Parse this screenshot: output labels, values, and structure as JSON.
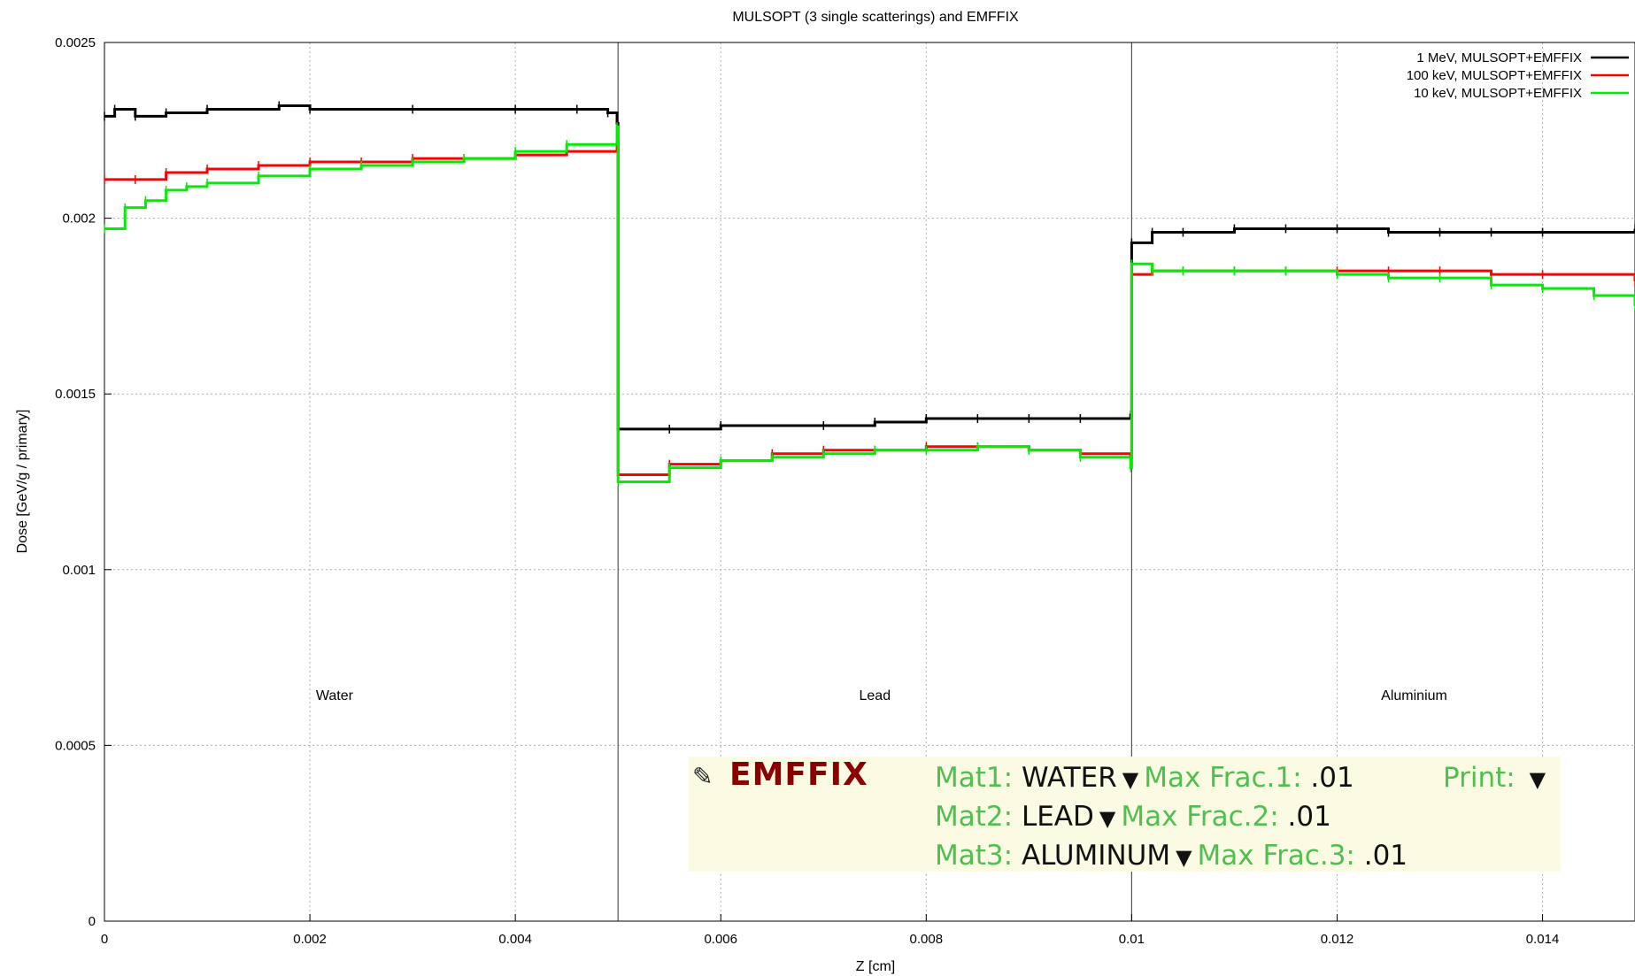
{
  "chart_data": {
    "type": "line",
    "title": "MULSOPT (3 single scatterings) and EMFFIX",
    "xlabel": "Z [cm]",
    "ylabel": "Dose [GeV/g / primary]",
    "xlim": [
      0,
      0.0149
    ],
    "ylim": [
      0,
      0.0025
    ],
    "x_ticks": [
      "0",
      "0.002",
      "0.004",
      "0.006",
      "0.008",
      "0.01",
      "0.012",
      "0.014"
    ],
    "y_ticks": [
      "0",
      "0.0005",
      "0.001",
      "0.0015",
      "0.002",
      "0.0025"
    ],
    "grid": true,
    "legend_position": "top-right",
    "regions": [
      {
        "label": "Water",
        "x_start": 0,
        "x_end": 0.005,
        "label_x": 0.00224
      },
      {
        "label": "Lead",
        "x_start": 0.005,
        "x_end": 0.01,
        "label_x": 0.0075
      },
      {
        "label": "Aluminium",
        "x_start": 0.01,
        "x_end": 0.0149,
        "label_x": 0.01275
      }
    ],
    "label_y": 0.00063,
    "series": [
      {
        "name": "1 MeV, MULSOPT+EMFFIX",
        "color": "#000000",
        "points": [
          [
            0,
            0.00229
          ],
          [
            0.0001,
            0.00231
          ],
          [
            0.0003,
            0.00229
          ],
          [
            0.0006,
            0.0023
          ],
          [
            0.001,
            0.00231
          ],
          [
            0.0017,
            0.00232
          ],
          [
            0.002,
            0.00231
          ],
          [
            0.003,
            0.00231
          ],
          [
            0.004,
            0.00231
          ],
          [
            0.0046,
            0.00231
          ],
          [
            0.0049,
            0.0023
          ],
          [
            0.00499,
            0.00227
          ],
          [
            0.005,
            0.0014
          ],
          [
            0.0055,
            0.0014
          ],
          [
            0.006,
            0.00141
          ],
          [
            0.007,
            0.00141
          ],
          [
            0.0075,
            0.00142
          ],
          [
            0.008,
            0.00143
          ],
          [
            0.0085,
            0.00143
          ],
          [
            0.009,
            0.00143
          ],
          [
            0.0095,
            0.00143
          ],
          [
            0.00999,
            0.00144
          ],
          [
            0.01,
            0.00193
          ],
          [
            0.0102,
            0.00196
          ],
          [
            0.0105,
            0.00196
          ],
          [
            0.011,
            0.00197
          ],
          [
            0.0115,
            0.00197
          ],
          [
            0.012,
            0.00197
          ],
          [
            0.0125,
            0.00196
          ],
          [
            0.013,
            0.00196
          ],
          [
            0.0135,
            0.00196
          ],
          [
            0.014,
            0.00196
          ],
          [
            0.0149,
            0.00197
          ]
        ]
      },
      {
        "name": "100 keV, MULSOPT+EMFFIX",
        "color": "#ff0000",
        "points": [
          [
            0,
            0.00211
          ],
          [
            0.0003,
            0.00211
          ],
          [
            0.0006,
            0.00213
          ],
          [
            0.001,
            0.00214
          ],
          [
            0.0015,
            0.00215
          ],
          [
            0.002,
            0.00216
          ],
          [
            0.0025,
            0.00216
          ],
          [
            0.003,
            0.00217
          ],
          [
            0.0035,
            0.00217
          ],
          [
            0.004,
            0.00218
          ],
          [
            0.0045,
            0.00219
          ],
          [
            0.00499,
            0.00222
          ],
          [
            0.005,
            0.00127
          ],
          [
            0.0055,
            0.0013
          ],
          [
            0.006,
            0.00131
          ],
          [
            0.0065,
            0.00133
          ],
          [
            0.007,
            0.00134
          ],
          [
            0.0075,
            0.00134
          ],
          [
            0.008,
            0.00135
          ],
          [
            0.0085,
            0.00135
          ],
          [
            0.009,
            0.00134
          ],
          [
            0.0095,
            0.00133
          ],
          [
            0.00999,
            0.00132
          ],
          [
            0.01,
            0.00184
          ],
          [
            0.0102,
            0.00185
          ],
          [
            0.0105,
            0.00185
          ],
          [
            0.011,
            0.00185
          ],
          [
            0.0115,
            0.00185
          ],
          [
            0.012,
            0.00185
          ],
          [
            0.0125,
            0.00185
          ],
          [
            0.013,
            0.00185
          ],
          [
            0.0135,
            0.00184
          ],
          [
            0.014,
            0.00184
          ],
          [
            0.0149,
            0.00182
          ]
        ]
      },
      {
        "name": "10 keV, MULSOPT+EMFFIX",
        "color": "#00ee00",
        "points": [
          [
            0,
            0.00197
          ],
          [
            0.0002,
            0.00203
          ],
          [
            0.0004,
            0.00205
          ],
          [
            0.0006,
            0.00208
          ],
          [
            0.0008,
            0.00209
          ],
          [
            0.001,
            0.0021
          ],
          [
            0.0015,
            0.00212
          ],
          [
            0.002,
            0.00214
          ],
          [
            0.0025,
            0.00215
          ],
          [
            0.003,
            0.00216
          ],
          [
            0.0035,
            0.00217
          ],
          [
            0.004,
            0.00219
          ],
          [
            0.0045,
            0.00221
          ],
          [
            0.00499,
            0.00226
          ],
          [
            0.005,
            0.00125
          ],
          [
            0.0055,
            0.00129
          ],
          [
            0.006,
            0.00131
          ],
          [
            0.0065,
            0.00132
          ],
          [
            0.007,
            0.00133
          ],
          [
            0.0075,
            0.00134
          ],
          [
            0.008,
            0.00134
          ],
          [
            0.0085,
            0.00135
          ],
          [
            0.009,
            0.00134
          ],
          [
            0.0095,
            0.00132
          ],
          [
            0.00999,
            0.00129
          ],
          [
            0.01,
            0.00187
          ],
          [
            0.0102,
            0.00185
          ],
          [
            0.0105,
            0.00185
          ],
          [
            0.011,
            0.00185
          ],
          [
            0.0115,
            0.00185
          ],
          [
            0.012,
            0.00184
          ],
          [
            0.0125,
            0.00183
          ],
          [
            0.013,
            0.00183
          ],
          [
            0.0135,
            0.00181
          ],
          [
            0.014,
            0.0018
          ],
          [
            0.0145,
            0.00178
          ],
          [
            0.0149,
            0.00175
          ]
        ]
      }
    ]
  },
  "card": {
    "title": "EMFFIX",
    "mat1_label": "Mat1:",
    "mat1_value": "WATER",
    "mat2_label": "Mat2:",
    "mat2_value": "LEAD",
    "mat3_label": "Mat3:",
    "mat3_value": "ALUMINUM",
    "frac1_label": "Max Frac.1:",
    "frac1_value": ".01",
    "frac2_label": "Max Frac.2:",
    "frac2_value": ".01",
    "frac3_label": "Max Frac.3:",
    "frac3_value": ".01",
    "print_label": "Print:",
    "pencil_icon": "pencil-icon",
    "dropdown_icon": "dropdown-arrow-icon",
    "colors": {
      "title": "#8b0000",
      "label": "#4fbf4f",
      "background": "#fbfbe3"
    }
  }
}
